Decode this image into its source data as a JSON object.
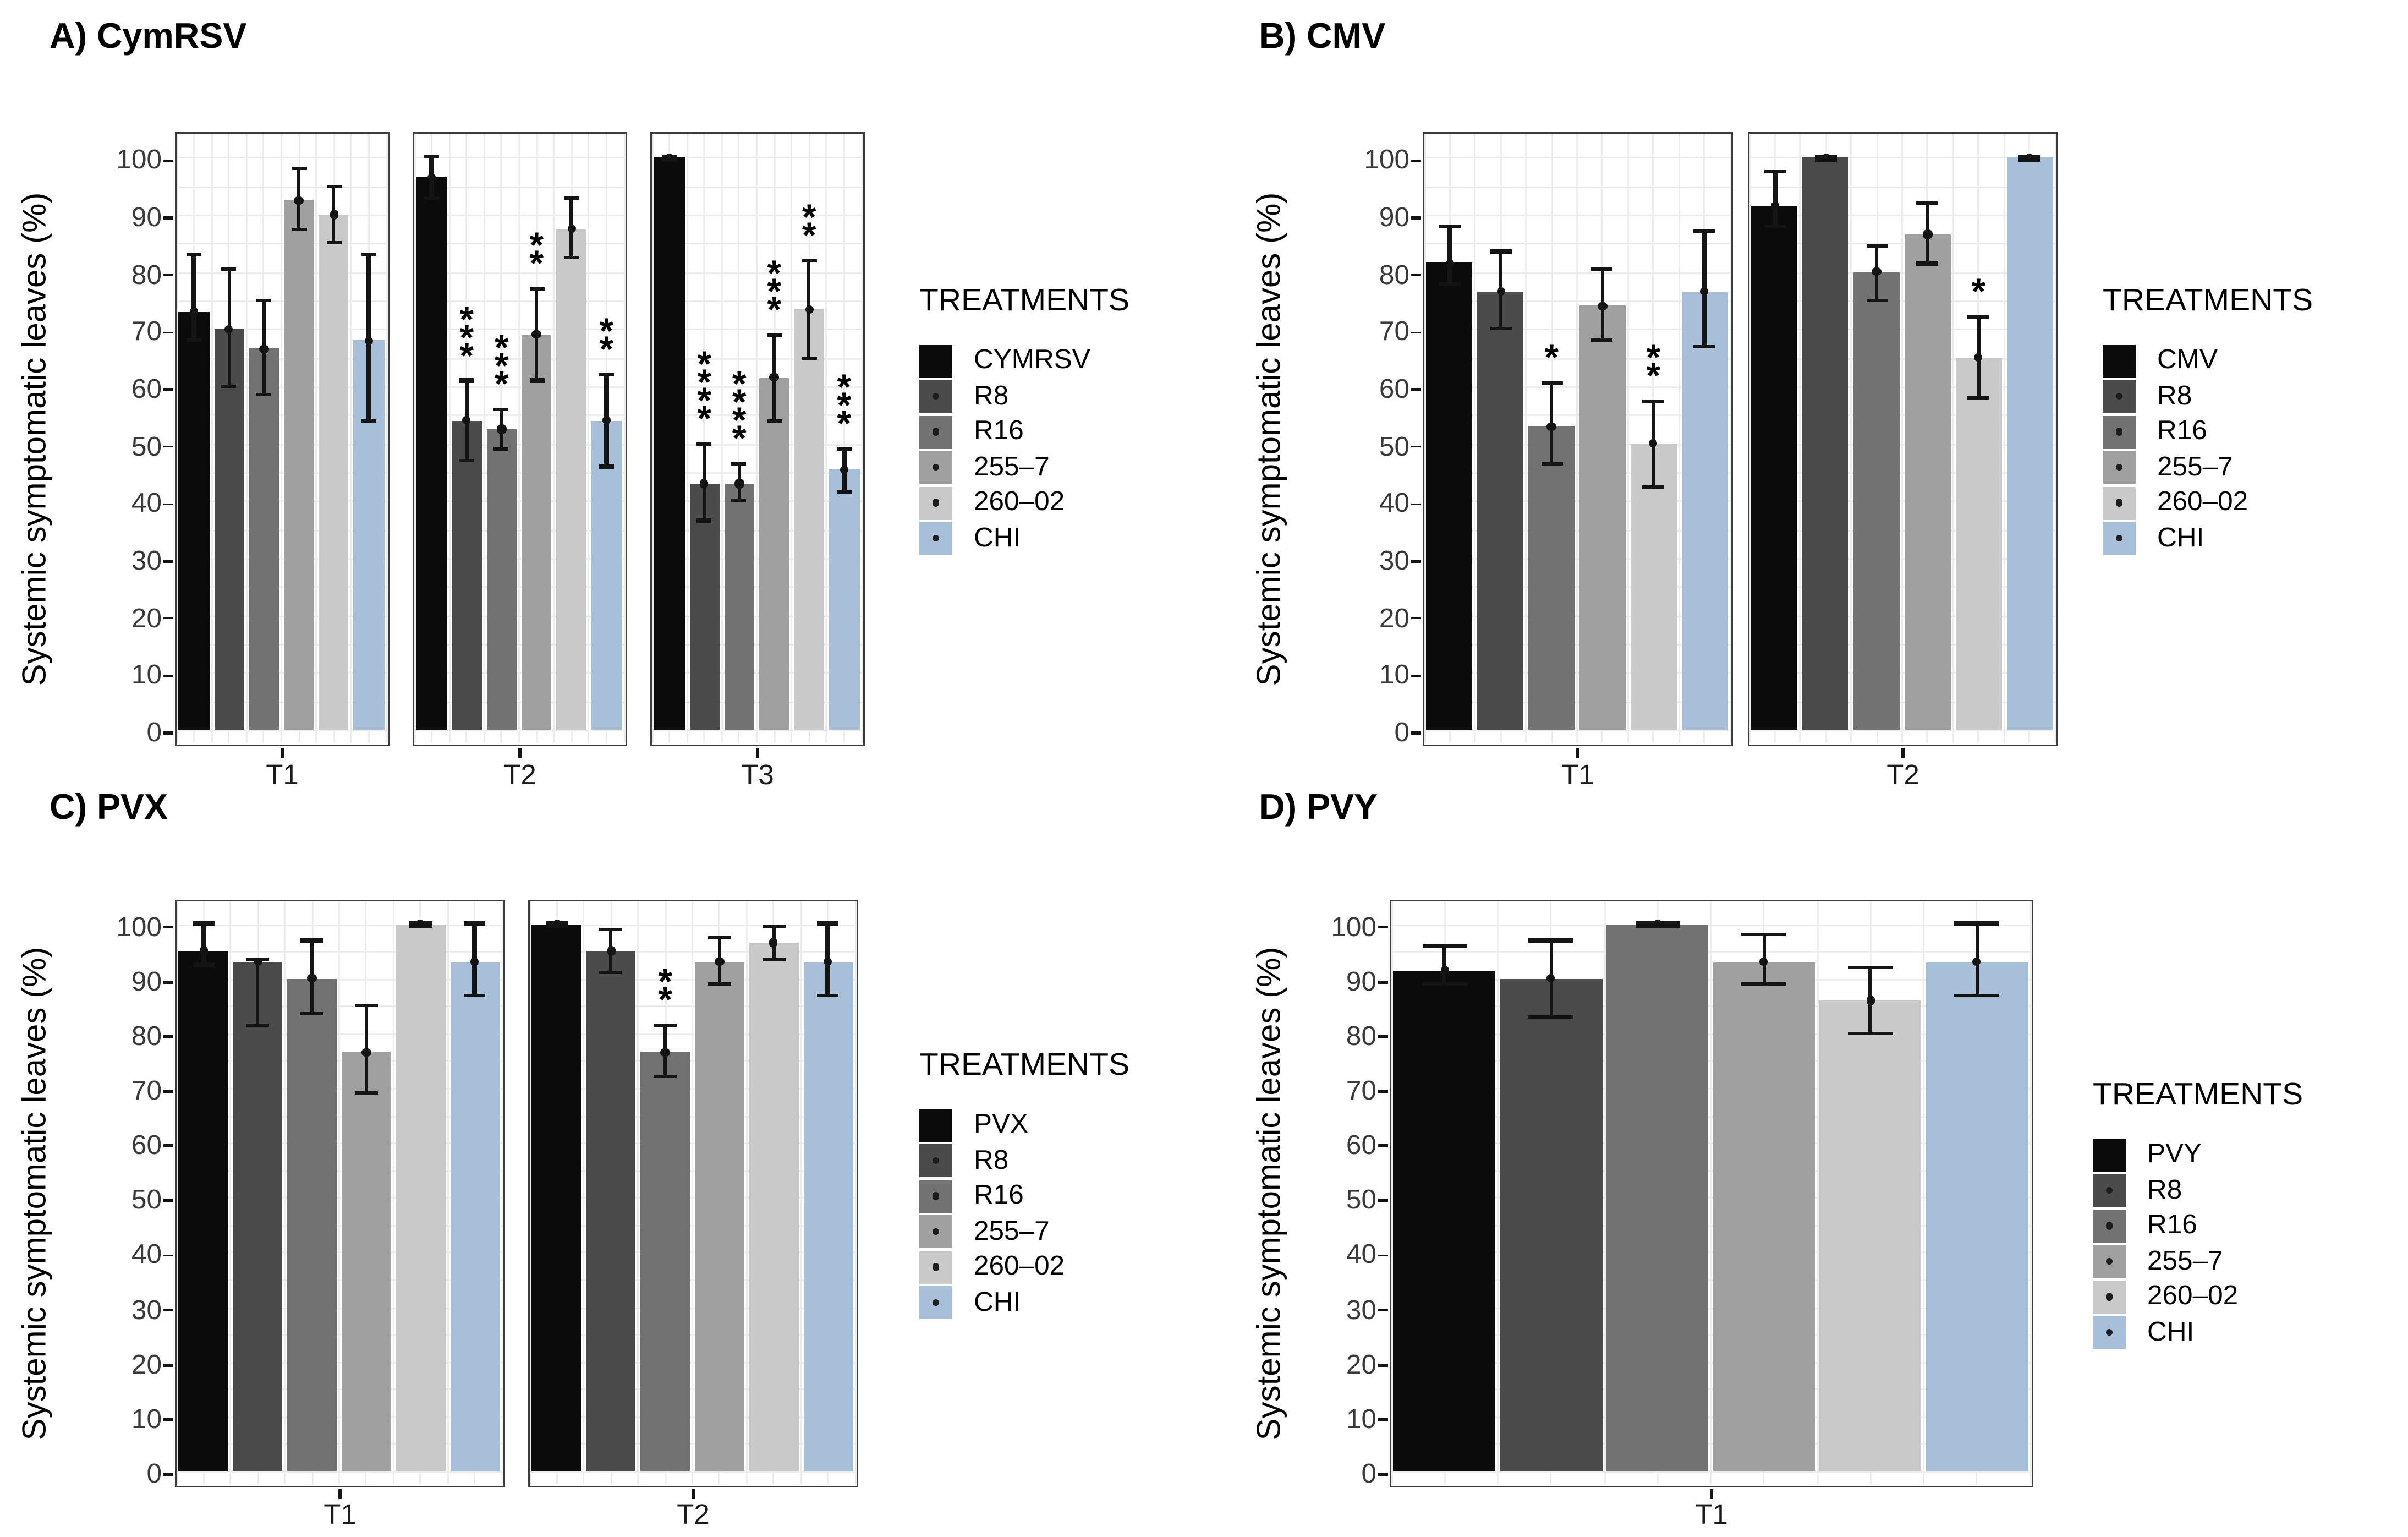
{
  "ylabel": "Systemic symptomatic leaves (%)",
  "legend_title": "TREATMENTS",
  "chart_data": [
    {
      "type": "bar",
      "panel": "A",
      "title": "A) CymRSV",
      "ylabel": "Systemic symptomatic leaves (%)",
      "legend_title": "TREATMENTS",
      "ylim": [
        0,
        105
      ],
      "yticks": [
        0,
        10,
        20,
        30,
        40,
        50,
        60,
        70,
        80,
        90,
        100
      ],
      "legend": [
        {
          "label": "CYMRSV",
          "color": "#0b0b0b",
          "dot": false
        },
        {
          "label": "R8",
          "color": "#4b4b4b",
          "dot": true
        },
        {
          "label": "R16",
          "color": "#727272",
          "dot": true
        },
        {
          "label": "255–7",
          "color": "#a0a0a0",
          "dot": true
        },
        {
          "label": "260–02",
          "color": "#c9c9c9",
          "dot": true
        },
        {
          "label": "CHI",
          "color": "#a8bfd9",
          "dot": true
        }
      ],
      "facets": [
        {
          "label": "T1",
          "bars": [
            {
              "treatment": "CYMRSV",
              "value": 73,
              "err_lo": 68,
              "err_hi": 83,
              "sig": ""
            },
            {
              "treatment": "R8",
              "value": 70,
              "err_lo": 60,
              "err_hi": 80.5,
              "sig": ""
            },
            {
              "treatment": "R16",
              "value": 66.5,
              "err_lo": 58.5,
              "err_hi": 75,
              "sig": ""
            },
            {
              "treatment": "255–7",
              "value": 92.5,
              "err_lo": 87.5,
              "err_hi": 98,
              "sig": ""
            },
            {
              "treatment": "260–02",
              "value": 90,
              "err_lo": 85,
              "err_hi": 95,
              "sig": ""
            },
            {
              "treatment": "CHI",
              "value": 68,
              "err_lo": 54,
              "err_hi": 83,
              "sig": ""
            }
          ]
        },
        {
          "label": "T2",
          "bars": [
            {
              "treatment": "CYMRSV",
              "value": 96.5,
              "err_lo": 93,
              "err_hi": 100,
              "sig": ""
            },
            {
              "treatment": "R8",
              "value": 54,
              "err_lo": 47,
              "err_hi": 61,
              "sig": "***"
            },
            {
              "treatment": "R16",
              "value": 52.5,
              "err_lo": 49,
              "err_hi": 56,
              "sig": "***"
            },
            {
              "treatment": "255–7",
              "value": 69,
              "err_lo": 61,
              "err_hi": 77,
              "sig": "**"
            },
            {
              "treatment": "260–02",
              "value": 87.5,
              "err_lo": 82.5,
              "err_hi": 93,
              "sig": ""
            },
            {
              "treatment": "CHI",
              "value": 54,
              "err_lo": 46,
              "err_hi": 62,
              "sig": "**"
            }
          ]
        },
        {
          "label": "T3",
          "bars": [
            {
              "treatment": "CYMRSV",
              "value": 100,
              "err_lo": 99.5,
              "err_hi": 100,
              "sig": ""
            },
            {
              "treatment": "R8",
              "value": 43,
              "err_lo": 36.5,
              "err_hi": 50,
              "sig": "****"
            },
            {
              "treatment": "R16",
              "value": 43,
              "err_lo": 40,
              "err_hi": 46.5,
              "sig": "****"
            },
            {
              "treatment": "255–7",
              "value": 61.5,
              "err_lo": 54,
              "err_hi": 69,
              "sig": "***"
            },
            {
              "treatment": "260–02",
              "value": 73.5,
              "err_lo": 65,
              "err_hi": 82,
              "sig": "**"
            },
            {
              "treatment": "CHI",
              "value": 45.5,
              "err_lo": 41.5,
              "err_hi": 49,
              "sig": "***"
            }
          ]
        }
      ]
    },
    {
      "type": "bar",
      "panel": "B",
      "title": "B) CMV",
      "ylabel": "Systemic symptomatic leaves (%)",
      "legend_title": "TREATMENTS",
      "ylim": [
        0,
        105
      ],
      "yticks": [
        0,
        10,
        20,
        30,
        40,
        50,
        60,
        70,
        80,
        90,
        100
      ],
      "legend": [
        {
          "label": "CMV",
          "color": "#0b0b0b",
          "dot": false
        },
        {
          "label": "R8",
          "color": "#4b4b4b",
          "dot": true
        },
        {
          "label": "R16",
          "color": "#727272",
          "dot": true
        },
        {
          "label": "255–7",
          "color": "#a0a0a0",
          "dot": true
        },
        {
          "label": "260–02",
          "color": "#c9c9c9",
          "dot": true
        },
        {
          "label": "CHI",
          "color": "#a8bfd9",
          "dot": true
        }
      ],
      "facets": [
        {
          "label": "T1",
          "bars": [
            {
              "treatment": "CMV",
              "value": 81.5,
              "err_lo": 78,
              "err_hi": 88,
              "sig": ""
            },
            {
              "treatment": "R8",
              "value": 76.5,
              "err_lo": 70,
              "err_hi": 83.5,
              "sig": ""
            },
            {
              "treatment": "R16",
              "value": 53,
              "err_lo": 46.5,
              "err_hi": 60.5,
              "sig": "*"
            },
            {
              "treatment": "255–7",
              "value": 74,
              "err_lo": 68,
              "err_hi": 80.5,
              "sig": ""
            },
            {
              "treatment": "260–02",
              "value": 50,
              "err_lo": 42.5,
              "err_hi": 57.5,
              "sig": "**"
            },
            {
              "treatment": "CHI",
              "value": 76.5,
              "err_lo": 67,
              "err_hi": 87,
              "sig": ""
            }
          ]
        },
        {
          "label": "T2",
          "bars": [
            {
              "treatment": "CMV",
              "value": 91.5,
              "err_lo": 88,
              "err_hi": 97.5,
              "sig": ""
            },
            {
              "treatment": "R8",
              "value": 100,
              "err_lo": 99.5,
              "err_hi": 100,
              "sig": ""
            },
            {
              "treatment": "R16",
              "value": 80,
              "err_lo": 75,
              "err_hi": 84.5,
              "sig": ""
            },
            {
              "treatment": "255–7",
              "value": 86.5,
              "err_lo": 81.5,
              "err_hi": 92,
              "sig": ""
            },
            {
              "treatment": "260–02",
              "value": 65,
              "err_lo": 58,
              "err_hi": 72,
              "sig": "*"
            },
            {
              "treatment": "CHI",
              "value": 100,
              "err_lo": 99.5,
              "err_hi": 100,
              "sig": ""
            }
          ]
        }
      ]
    },
    {
      "type": "bar",
      "panel": "C",
      "title": "C) PVX",
      "ylabel": "Systemic symptomatic leaves (%)",
      "legend_title": "TREATMENTS",
      "ylim": [
        0,
        105
      ],
      "yticks": [
        0,
        10,
        20,
        30,
        40,
        50,
        60,
        70,
        80,
        90,
        100
      ],
      "legend": [
        {
          "label": "PVX",
          "color": "#0b0b0b",
          "dot": false
        },
        {
          "label": "R8",
          "color": "#4b4b4b",
          "dot": true
        },
        {
          "label": "R16",
          "color": "#727272",
          "dot": true
        },
        {
          "label": "255–7",
          "color": "#a0a0a0",
          "dot": true
        },
        {
          "label": "260–02",
          "color": "#c9c9c9",
          "dot": true
        },
        {
          "label": "CHI",
          "color": "#a8bfd9",
          "dot": true
        }
      ],
      "facets": [
        {
          "label": "T1",
          "bars": [
            {
              "treatment": "PVX",
              "value": 95,
              "err_lo": 92.5,
              "err_hi": 100,
              "sig": ""
            },
            {
              "treatment": "R8",
              "value": 93,
              "err_lo": 81.5,
              "err_hi": 93.5,
              "sig": ""
            },
            {
              "treatment": "R16",
              "value": 90,
              "err_lo": 83.5,
              "err_hi": 97,
              "sig": ""
            },
            {
              "treatment": "255–7",
              "value": 76.5,
              "err_lo": 69,
              "err_hi": 85,
              "sig": ""
            },
            {
              "treatment": "260–02",
              "value": 100,
              "err_lo": 99.5,
              "err_hi": 100,
              "sig": ""
            },
            {
              "treatment": "CHI",
              "value": 93,
              "err_lo": 87,
              "err_hi": 100,
              "sig": ""
            }
          ]
        },
        {
          "label": "T2",
          "bars": [
            {
              "treatment": "PVX",
              "value": 100,
              "err_lo": 99.5,
              "err_hi": 100,
              "sig": ""
            },
            {
              "treatment": "R8",
              "value": 95,
              "err_lo": 91,
              "err_hi": 99,
              "sig": ""
            },
            {
              "treatment": "R16",
              "value": 76.5,
              "err_lo": 72,
              "err_hi": 81.5,
              "sig": "**"
            },
            {
              "treatment": "255–7",
              "value": 93,
              "err_lo": 89,
              "err_hi": 97.5,
              "sig": ""
            },
            {
              "treatment": "260–02",
              "value": 96.5,
              "err_lo": 93.5,
              "err_hi": 99.5,
              "sig": ""
            },
            {
              "treatment": "CHI",
              "value": 93,
              "err_lo": 87,
              "err_hi": 100,
              "sig": ""
            }
          ]
        }
      ]
    },
    {
      "type": "bar",
      "panel": "D",
      "title": "D) PVY",
      "ylabel": "Systemic symptomatic leaves (%)",
      "legend_title": "TREATMENTS",
      "ylim": [
        0,
        105
      ],
      "yticks": [
        0,
        10,
        20,
        30,
        40,
        50,
        60,
        70,
        80,
        90,
        100
      ],
      "legend": [
        {
          "label": "PVY",
          "color": "#0b0b0b",
          "dot": false
        },
        {
          "label": "R8",
          "color": "#4b4b4b",
          "dot": true
        },
        {
          "label": "R16",
          "color": "#727272",
          "dot": true
        },
        {
          "label": "255–7",
          "color": "#a0a0a0",
          "dot": true
        },
        {
          "label": "260–02",
          "color": "#c9c9c9",
          "dot": true
        },
        {
          "label": "CHI",
          "color": "#a8bfd9",
          "dot": true
        }
      ],
      "facets": [
        {
          "label": "T1",
          "bars": [
            {
              "treatment": "PVY",
              "value": 91.5,
              "err_lo": 89,
              "err_hi": 96,
              "sig": ""
            },
            {
              "treatment": "R8",
              "value": 90,
              "err_lo": 83,
              "err_hi": 97,
              "sig": ""
            },
            {
              "treatment": "R16",
              "value": 100,
              "err_lo": 99.5,
              "err_hi": 100,
              "sig": ""
            },
            {
              "treatment": "255–7",
              "value": 93,
              "err_lo": 89,
              "err_hi": 98,
              "sig": ""
            },
            {
              "treatment": "260–02",
              "value": 86,
              "err_lo": 80,
              "err_hi": 92,
              "sig": ""
            },
            {
              "treatment": "CHI",
              "value": 93,
              "err_lo": 87,
              "err_hi": 100,
              "sig": ""
            }
          ]
        }
      ]
    }
  ]
}
